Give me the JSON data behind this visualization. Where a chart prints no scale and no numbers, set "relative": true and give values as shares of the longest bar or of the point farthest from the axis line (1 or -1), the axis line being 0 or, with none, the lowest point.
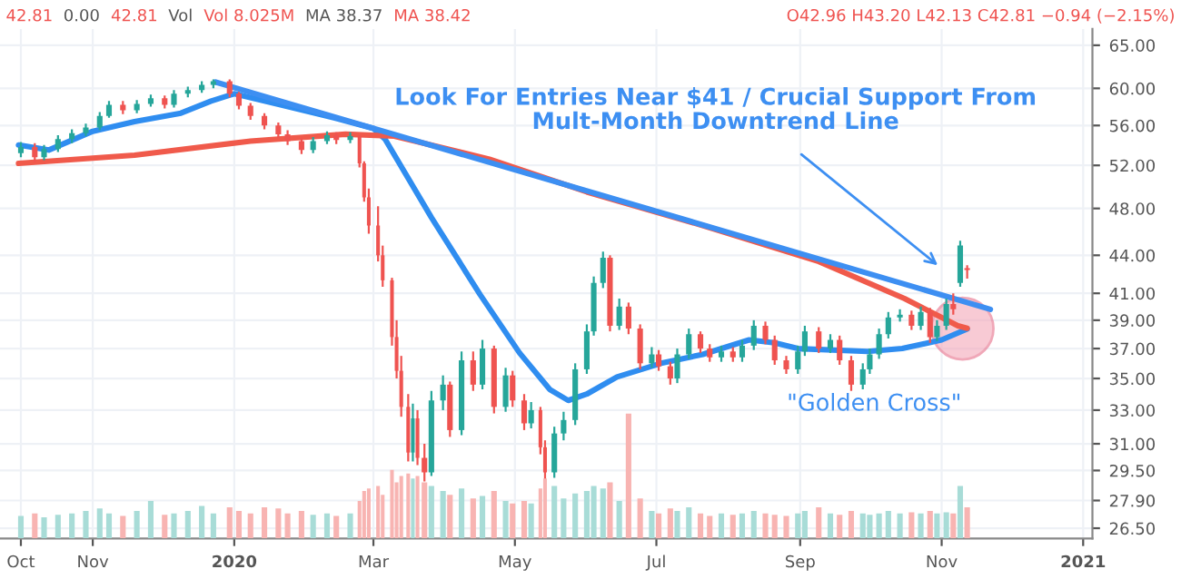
{
  "chart_data": [
    {
      "type": "candlestick",
      "x": [
        "2019-10-01",
        "2019-10-07",
        "2019-10-11",
        "2019-10-17",
        "2019-10-23",
        "2019-10-29",
        "2019-11-04",
        "2019-11-08",
        "2019-11-14",
        "2019-11-20",
        "2019-11-26",
        "2019-12-02",
        "2019-12-06",
        "2019-12-12",
        "2019-12-18",
        "2019-12-23",
        "2019-12-30",
        "2020-01-03",
        "2020-01-08",
        "2020-01-14",
        "2020-01-20",
        "2020-01-24",
        "2020-01-30",
        "2020-02-04",
        "2020-02-10",
        "2020-02-14",
        "2020-02-20",
        "2020-02-24",
        "2020-02-26",
        "2020-02-28",
        "2020-03-03",
        "2020-03-05",
        "2020-03-09",
        "2020-03-11",
        "2020-03-13",
        "2020-03-16",
        "2020-03-18",
        "2020-03-20",
        "2020-03-23",
        "2020-03-26",
        "2020-03-31",
        "2020-04-03",
        "2020-04-08",
        "2020-04-13",
        "2020-04-17",
        "2020-04-22",
        "2020-04-27",
        "2020-04-30",
        "2020-05-05",
        "2020-05-08",
        "2020-05-12",
        "2020-05-14",
        "2020-05-18",
        "2020-05-22",
        "2020-05-27",
        "2020-06-01",
        "2020-06-04",
        "2020-06-08",
        "2020-06-11",
        "2020-06-15",
        "2020-06-19",
        "2020-06-24",
        "2020-06-29",
        "2020-07-02",
        "2020-07-07",
        "2020-07-10",
        "2020-07-15",
        "2020-07-20",
        "2020-07-24",
        "2020-07-29",
        "2020-08-03",
        "2020-08-07",
        "2020-08-12",
        "2020-08-17",
        "2020-08-21",
        "2020-08-26",
        "2020-08-31",
        "2020-09-03",
        "2020-09-09",
        "2020-09-14",
        "2020-09-18",
        "2020-09-23",
        "2020-09-28",
        "2020-10-01",
        "2020-10-05",
        "2020-10-09",
        "2020-10-14",
        "2020-10-19",
        "2020-10-23",
        "2020-10-27",
        "2020-10-30",
        "2020-11-03",
        "2020-11-06",
        "2020-11-09",
        "2020-11-12"
      ],
      "ohlc": [
        [
          53.2,
          54.3,
          52.8,
          53.8
        ],
        [
          53.8,
          54.2,
          52.3,
          52.8
        ],
        [
          52.8,
          54.0,
          52.5,
          53.6
        ],
        [
          53.6,
          55.0,
          53.3,
          54.6
        ],
        [
          54.6,
          55.6,
          54.2,
          55.2
        ],
        [
          55.2,
          56.2,
          54.9,
          55.8
        ],
        [
          55.8,
          57.4,
          55.5,
          57.0
        ],
        [
          57.0,
          58.6,
          56.8,
          58.2
        ],
        [
          58.2,
          58.6,
          57.2,
          57.6
        ],
        [
          57.6,
          58.7,
          57.3,
          58.3
        ],
        [
          58.3,
          59.3,
          58.0,
          58.9
        ],
        [
          58.9,
          59.2,
          57.8,
          58.2
        ],
        [
          58.2,
          59.8,
          57.9,
          59.4
        ],
        [
          59.4,
          60.2,
          59.0,
          59.8
        ],
        [
          59.8,
          60.8,
          59.5,
          60.4
        ],
        [
          60.4,
          61.0,
          60.0,
          60.8
        ],
        [
          60.8,
          61.0,
          59.0,
          59.4
        ],
        [
          59.4,
          59.6,
          57.7,
          58.1
        ],
        [
          58.1,
          58.4,
          56.6,
          57.0
        ],
        [
          57.0,
          57.3,
          55.6,
          56.0
        ],
        [
          56.0,
          56.3,
          54.7,
          55.1
        ],
        [
          55.1,
          55.5,
          54.0,
          54.4
        ],
        [
          54.4,
          54.7,
          53.1,
          53.5
        ],
        [
          53.5,
          54.8,
          53.2,
          54.4
        ],
        [
          54.4,
          55.4,
          54.1,
          55.0
        ],
        [
          55.0,
          55.3,
          54.1,
          54.5
        ],
        [
          54.5,
          55.3,
          54.2,
          54.9
        ],
        [
          54.9,
          55.0,
          51.8,
          52.2
        ],
        [
          52.2,
          52.4,
          48.6,
          49.0
        ],
        [
          49.0,
          49.8,
          45.8,
          46.5
        ],
        [
          46.5,
          48.2,
          43.5,
          44.0
        ],
        [
          44.0,
          44.8,
          41.5,
          42.0
        ],
        [
          42.0,
          42.2,
          37.2,
          37.8
        ],
        [
          37.8,
          39.0,
          35.0,
          35.5
        ],
        [
          35.5,
          36.5,
          32.6,
          33.2
        ],
        [
          33.2,
          34.0,
          30.0,
          30.5
        ],
        [
          30.5,
          33.4,
          30.0,
          32.5
        ],
        [
          32.5,
          33.0,
          29.8,
          30.2
        ],
        [
          30.2,
          31.0,
          28.9,
          29.4
        ],
        [
          29.4,
          34.2,
          29.2,
          33.6
        ],
        [
          33.6,
          35.2,
          33.0,
          34.6
        ],
        [
          34.6,
          34.8,
          31.4,
          31.8
        ],
        [
          31.8,
          36.8,
          31.5,
          36.2
        ],
        [
          36.2,
          36.8,
          34.2,
          34.6
        ],
        [
          34.6,
          37.6,
          34.3,
          37.0
        ],
        [
          37.0,
          37.2,
          32.8,
          33.2
        ],
        [
          33.2,
          35.7,
          32.9,
          35.2
        ],
        [
          35.2,
          35.5,
          33.2,
          33.6
        ],
        [
          33.6,
          34.0,
          31.8,
          32.2
        ],
        [
          32.2,
          33.5,
          31.9,
          33.0
        ],
        [
          33.0,
          33.2,
          30.4,
          30.8
        ],
        [
          30.8,
          31.2,
          28.9,
          29.4
        ],
        [
          29.4,
          32.0,
          29.1,
          31.6
        ],
        [
          31.6,
          32.9,
          31.2,
          32.4
        ],
        [
          32.4,
          36.0,
          32.1,
          35.6
        ],
        [
          35.6,
          38.7,
          35.3,
          38.2
        ],
        [
          38.2,
          42.3,
          37.9,
          41.8
        ],
        [
          41.8,
          44.3,
          41.4,
          43.8
        ],
        [
          43.8,
          44.0,
          38.2,
          38.6
        ],
        [
          38.6,
          40.6,
          38.3,
          40.0
        ],
        [
          40.0,
          40.3,
          38.0,
          38.4
        ],
        [
          38.4,
          38.7,
          35.6,
          36.0
        ],
        [
          36.0,
          37.1,
          35.7,
          36.6
        ],
        [
          36.6,
          36.9,
          35.5,
          35.8
        ],
        [
          35.8,
          36.1,
          34.6,
          35.0
        ],
        [
          35.0,
          37.0,
          34.7,
          36.6
        ],
        [
          36.6,
          38.4,
          36.3,
          38.0
        ],
        [
          38.0,
          38.2,
          36.7,
          37.0
        ],
        [
          37.0,
          37.3,
          36.1,
          36.4
        ],
        [
          36.4,
          37.2,
          36.1,
          36.8
        ],
        [
          36.8,
          37.1,
          36.1,
          36.4
        ],
        [
          36.4,
          37.6,
          36.1,
          37.2
        ],
        [
          37.2,
          39.0,
          36.9,
          38.6
        ],
        [
          38.6,
          38.9,
          37.3,
          37.6
        ],
        [
          37.6,
          37.9,
          35.9,
          36.2
        ],
        [
          36.2,
          36.5,
          35.3,
          35.6
        ],
        [
          35.6,
          37.2,
          35.3,
          36.8
        ],
        [
          36.8,
          38.6,
          36.5,
          38.2
        ],
        [
          38.2,
          38.5,
          36.7,
          37.0
        ],
        [
          37.0,
          38.0,
          36.7,
          37.6
        ],
        [
          37.6,
          37.9,
          35.9,
          36.2
        ],
        [
          36.2,
          36.5,
          34.2,
          34.6
        ],
        [
          34.6,
          36.0,
          34.3,
          35.6
        ],
        [
          35.6,
          37.0,
          35.3,
          36.6
        ],
        [
          36.6,
          38.4,
          36.3,
          38.0
        ],
        [
          38.0,
          39.6,
          37.7,
          39.2
        ],
        [
          39.2,
          39.8,
          38.9,
          39.4
        ],
        [
          39.4,
          39.7,
          38.3,
          38.6
        ],
        [
          38.6,
          40.0,
          38.3,
          39.6
        ],
        [
          39.6,
          39.9,
          37.4,
          37.8
        ],
        [
          37.8,
          39.0,
          37.5,
          38.6
        ],
        [
          38.6,
          40.6,
          38.3,
          40.2
        ],
        [
          40.2,
          41.0,
          39.4,
          39.8
        ],
        [
          41.8,
          45.2,
          41.5,
          44.8
        ],
        [
          42.96,
          43.2,
          42.13,
          42.81
        ]
      ],
      "colors": [
        "#26a69a",
        "#ef5350",
        "#26a69a",
        "#26a69a",
        "#26a69a",
        "#26a69a",
        "#26a69a",
        "#26a69a",
        "#ef5350",
        "#26a69a",
        "#26a69a",
        "#ef5350",
        "#26a69a",
        "#26a69a",
        "#26a69a",
        "#26a69a",
        "#ef5350",
        "#ef5350",
        "#ef5350",
        "#ef5350",
        "#ef5350",
        "#ef5350",
        "#ef5350",
        "#26a69a",
        "#26a69a",
        "#ef5350",
        "#26a69a",
        "#ef5350",
        "#ef5350",
        "#ef5350",
        "#ef5350",
        "#ef5350",
        "#ef5350",
        "#ef5350",
        "#ef5350",
        "#ef5350",
        "#26a69a",
        "#ef5350",
        "#ef5350",
        "#26a69a",
        "#26a69a",
        "#ef5350",
        "#26a69a",
        "#ef5350",
        "#26a69a",
        "#ef5350",
        "#26a69a",
        "#ef5350",
        "#ef5350",
        "#26a69a",
        "#ef5350",
        "#ef5350",
        "#26a69a",
        "#26a69a",
        "#26a69a",
        "#26a69a",
        "#26a69a",
        "#26a69a",
        "#ef5350",
        "#26a69a",
        "#ef5350",
        "#ef5350",
        "#26a69a",
        "#ef5350",
        "#ef5350",
        "#26a69a",
        "#26a69a",
        "#ef5350",
        "#ef5350",
        "#26a69a",
        "#ef5350",
        "#26a69a",
        "#26a69a",
        "#ef5350",
        "#ef5350",
        "#ef5350",
        "#26a69a",
        "#26a69a",
        "#ef5350",
        "#26a69a",
        "#ef5350",
        "#ef5350",
        "#26a69a",
        "#26a69a",
        "#26a69a",
        "#26a69a",
        "#26a69a",
        "#ef5350",
        "#26a69a",
        "#ef5350",
        "#26a69a",
        "#26a69a",
        "#ef5350",
        "#26a69a",
        "#ef5350"
      ],
      "series": [
        {
          "type": "line",
          "color": "#2f8df0",
          "x": [
            "2019-09-30",
            "2019-10-13",
            "2019-11-01",
            "2019-11-19",
            "2019-12-09",
            "2019-12-22",
            "2020-01-01",
            "2020-01-21",
            "2020-02-13",
            "2020-03-01",
            "2020-03-06",
            "2020-03-26",
            "2020-04-16",
            "2020-05-03",
            "2020-05-16",
            "2020-05-24",
            "2020-06-01",
            "2020-06-14",
            "2020-07-03",
            "2020-07-21",
            "2020-08-10",
            "2020-08-21",
            "2020-08-31",
            "2020-09-30",
            "2020-10-15",
            "2020-11-01",
            "2020-11-12"
          ],
          "values": [
            54.0,
            53.5,
            55.4,
            56.4,
            57.3,
            58.6,
            59.4,
            58.2,
            56.8,
            55.7,
            54.6,
            47.2,
            40.9,
            36.7,
            34.3,
            33.6,
            34.0,
            35.1,
            36.0,
            36.6,
            37.6,
            37.4,
            37.0,
            36.8,
            37.0,
            37.6,
            38.37
          ]
        },
        {
          "type": "line",
          "color": "#f05a4b",
          "x": [
            "2019-09-30",
            "2019-11-19",
            "2020-01-08",
            "2020-02-18",
            "2020-03-10",
            "2020-04-20",
            "2020-06-01",
            "2020-07-21",
            "2020-09-09",
            "2020-10-16",
            "2020-11-08",
            "2020-11-12"
          ],
          "values": [
            52.2,
            53.0,
            54.4,
            55.1,
            54.9,
            52.6,
            49.5,
            46.5,
            43.5,
            40.6,
            38.6,
            38.42
          ]
        },
        {
          "type": "line",
          "color": "#3d8ff2",
          "x": [
            "2019-12-24",
            "2020-11-22"
          ],
          "values": [
            60.7,
            39.8
          ]
        }
      ],
      "annotations": [
        "42.81",
        "0.00",
        "42.81",
        "Vol",
        "Vol 8.025M",
        "MA 38.37",
        "MA 38.42",
        "O42.96 H43.20 L42.13 C42.81 −0.94 (−2.15%)",
        "Look For Entries Near $41 / Crucial Support From\nMult-Month Downtrend Line",
        {
          "text": "\"Golden Cross\"",
          "x": "2020-11-10",
          "y": 38.4
        }
      ],
      "log": true,
      "xlim": [
        "2019-09-22",
        "2021-01-05"
      ],
      "xticks": [
        {
          "value": "2019-10-01",
          "label": "Oct"
        },
        {
          "value": "2019-11-01",
          "label": "Nov"
        },
        {
          "value": "2020-01-01",
          "label": "2020"
        },
        {
          "value": "2020-03-01",
          "label": "Mar"
        },
        {
          "value": "2020-05-01",
          "label": "May"
        },
        {
          "value": "2020-07-01",
          "label": "Jul"
        },
        {
          "value": "2020-09-01",
          "label": "Sep"
        },
        {
          "value": "2020-11-01",
          "label": "Nov"
        },
        {
          "value": "2021-01-01",
          "label": "2021"
        }
      ],
      "ylim": [
        26.0,
        67.0
      ],
      "yticks": [
        {
          "value": 26.5,
          "label": "26.50"
        },
        {
          "value": 27.9,
          "label": "27.90"
        },
        {
          "value": 29.5,
          "label": "29.50"
        },
        {
          "value": 31,
          "label": "31.00"
        },
        {
          "value": 33,
          "label": "33.00"
        },
        {
          "value": 35,
          "label": "35.00"
        },
        {
          "value": 37,
          "label": "37.00"
        },
        {
          "value": 39,
          "label": "39.00"
        },
        {
          "value": 41,
          "label": "41.00"
        },
        {
          "value": 44,
          "label": "44.00"
        },
        {
          "value": 48,
          "label": "48.00"
        },
        {
          "value": 52,
          "label": "52.00"
        },
        {
          "value": 56,
          "label": "56.00"
        },
        {
          "value": 60,
          "label": "60.00"
        },
        {
          "value": 65,
          "label": "65.00"
        }
      ],
      "grid": true
    },
    {
      "type": "bar",
      "relative": true,
      "tick_labels": false,
      "x": [
        "2019-10-01",
        "2019-10-07",
        "2019-10-11",
        "2019-10-17",
        "2019-10-23",
        "2019-10-29",
        "2019-11-04",
        "2019-11-08",
        "2019-11-14",
        "2019-11-20",
        "2019-11-26",
        "2019-12-02",
        "2019-12-06",
        "2019-12-12",
        "2019-12-18",
        "2019-12-23",
        "2019-12-30",
        "2020-01-03",
        "2020-01-08",
        "2020-01-14",
        "2020-01-20",
        "2020-01-24",
        "2020-01-30",
        "2020-02-04",
        "2020-02-10",
        "2020-02-14",
        "2020-02-20",
        "2020-02-24",
        "2020-02-26",
        "2020-02-28",
        "2020-03-03",
        "2020-03-05",
        "2020-03-09",
        "2020-03-11",
        "2020-03-13",
        "2020-03-16",
        "2020-03-18",
        "2020-03-20",
        "2020-03-23",
        "2020-03-26",
        "2020-03-31",
        "2020-04-03",
        "2020-04-08",
        "2020-04-13",
        "2020-04-17",
        "2020-04-22",
        "2020-04-27",
        "2020-04-30",
        "2020-05-05",
        "2020-05-08",
        "2020-05-12",
        "2020-05-14",
        "2020-05-18",
        "2020-05-22",
        "2020-05-27",
        "2020-06-01",
        "2020-06-04",
        "2020-06-08",
        "2020-06-11",
        "2020-06-15",
        "2020-06-19",
        "2020-06-24",
        "2020-06-29",
        "2020-07-02",
        "2020-07-07",
        "2020-07-10",
        "2020-07-15",
        "2020-07-20",
        "2020-07-24",
        "2020-07-29",
        "2020-08-03",
        "2020-08-07",
        "2020-08-12",
        "2020-08-17",
        "2020-08-21",
        "2020-08-26",
        "2020-08-31",
        "2020-09-03",
        "2020-09-09",
        "2020-09-14",
        "2020-09-18",
        "2020-09-23",
        "2020-09-28",
        "2020-10-01",
        "2020-10-05",
        "2020-10-09",
        "2020-10-14",
        "2020-10-19",
        "2020-10-23",
        "2020-10-27",
        "2020-10-30",
        "2020-11-03",
        "2020-11-06",
        "2020-11-09",
        "2020-11-12"
      ],
      "values": [
        0.18,
        0.2,
        0.17,
        0.19,
        0.2,
        0.22,
        0.24,
        0.2,
        0.18,
        0.22,
        0.3,
        0.19,
        0.2,
        0.22,
        0.26,
        0.2,
        0.25,
        0.22,
        0.2,
        0.25,
        0.24,
        0.2,
        0.22,
        0.19,
        0.2,
        0.18,
        0.2,
        0.3,
        0.38,
        0.4,
        0.42,
        0.35,
        0.55,
        0.45,
        0.5,
        0.52,
        0.48,
        0.5,
        0.45,
        0.42,
        0.38,
        0.35,
        0.4,
        0.32,
        0.34,
        0.38,
        0.3,
        0.28,
        0.3,
        0.28,
        0.4,
        0.48,
        0.42,
        0.32,
        0.36,
        0.38,
        0.42,
        0.4,
        0.45,
        0.3,
        1.0,
        0.32,
        0.22,
        0.2,
        0.24,
        0.22,
        0.25,
        0.2,
        0.18,
        0.2,
        0.19,
        0.2,
        0.22,
        0.2,
        0.19,
        0.18,
        0.2,
        0.22,
        0.25,
        0.2,
        0.19,
        0.22,
        0.2,
        0.19,
        0.2,
        0.22,
        0.2,
        0.21,
        0.2,
        0.22,
        0.2,
        0.21,
        0.2,
        0.42,
        0.25
      ],
      "colors": [
        "#a8dcd7",
        "#f8b4b2",
        "#a8dcd7",
        "#a8dcd7",
        "#a8dcd7",
        "#a8dcd7",
        "#a8dcd7",
        "#a8dcd7",
        "#f8b4b2",
        "#a8dcd7",
        "#a8dcd7",
        "#f8b4b2",
        "#a8dcd7",
        "#a8dcd7",
        "#a8dcd7",
        "#a8dcd7",
        "#f8b4b2",
        "#f8b4b2",
        "#f8b4b2",
        "#f8b4b2",
        "#f8b4b2",
        "#f8b4b2",
        "#f8b4b2",
        "#a8dcd7",
        "#a8dcd7",
        "#f8b4b2",
        "#a8dcd7",
        "#f8b4b2",
        "#f8b4b2",
        "#f8b4b2",
        "#f8b4b2",
        "#f8b4b2",
        "#f8b4b2",
        "#f8b4b2",
        "#f8b4b2",
        "#f8b4b2",
        "#a8dcd7",
        "#f8b4b2",
        "#f8b4b2",
        "#a8dcd7",
        "#a8dcd7",
        "#f8b4b2",
        "#a8dcd7",
        "#f8b4b2",
        "#a8dcd7",
        "#f8b4b2",
        "#a8dcd7",
        "#f8b4b2",
        "#f8b4b2",
        "#a8dcd7",
        "#f8b4b2",
        "#f8b4b2",
        "#a8dcd7",
        "#a8dcd7",
        "#a8dcd7",
        "#a8dcd7",
        "#a8dcd7",
        "#a8dcd7",
        "#f8b4b2",
        "#a8dcd7",
        "#f8b4b2",
        "#f8b4b2",
        "#a8dcd7",
        "#f8b4b2",
        "#f8b4b2",
        "#a8dcd7",
        "#a8dcd7",
        "#f8b4b2",
        "#f8b4b2",
        "#a8dcd7",
        "#f8b4b2",
        "#a8dcd7",
        "#a8dcd7",
        "#f8b4b2",
        "#f8b4b2",
        "#f8b4b2",
        "#a8dcd7",
        "#a8dcd7",
        "#f8b4b2",
        "#a8dcd7",
        "#f8b4b2",
        "#f8b4b2",
        "#a8dcd7",
        "#a8dcd7",
        "#a8dcd7",
        "#a8dcd7",
        "#a8dcd7",
        "#f8b4b2",
        "#a8dcd7",
        "#f8b4b2",
        "#a8dcd7",
        "#a8dcd7",
        "#f8b4b2",
        "#a8dcd7",
        "#f8b4b2"
      ],
      "xlim": [
        "2019-09-22",
        "2021-01-05"
      ]
    }
  ]
}
